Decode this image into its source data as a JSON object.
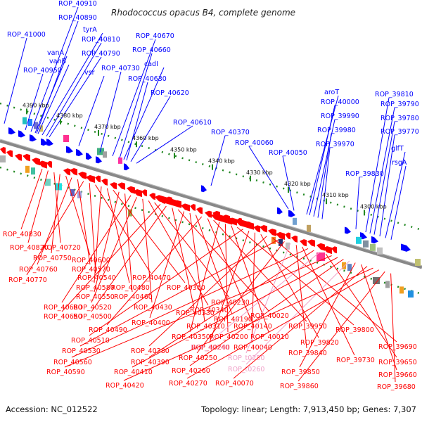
{
  "title": "Rhodococcus opacus B4, complete genome",
  "accession": "Accession: NC_012522",
  "summary": "Topology: linear; Length: 7,913,450 bp; Genes: 7,307",
  "colors": {
    "forward": "#0000ff",
    "reverse": "#ff0000",
    "reverse_light": "#f0a0c8",
    "backbone": "#888888",
    "ticks": "#228822"
  },
  "kbp_ticks": [
    "4390 kbp",
    "4380 kbp",
    "4370 kbp",
    "4360 kbp",
    "4350 kbp",
    "4340 kbp",
    "4330 kbp",
    "4320 kbp",
    "4310 kbp",
    "4300 kbp"
  ],
  "forward_labels": [
    "ROP_40910",
    "ROP_40890",
    "tyrA",
    "ROP_41000",
    "ROP_40810",
    "ROP_40670",
    "vanA",
    "ROP_40790",
    "ROP_40660",
    "vanB",
    "cadI",
    "ROP_40950",
    "ROP_40730",
    "vsr",
    "ROP_40630",
    "ROP_40620",
    "ROP_40610",
    "ROP_40370",
    "ROP_40060",
    "ROP_40050",
    "aroT",
    "ROP_40000",
    "ROP_39990",
    "ROP_39980",
    "ROP_39970",
    "ROP_39810",
    "ROP_39790",
    "ROP_39780",
    "ROP_39770",
    "glfT",
    "rsgA",
    "ROP_39830"
  ],
  "reverse_labels": [
    "ROP_40830",
    "ROP_40820",
    "ROP_40720",
    "ROP_40750",
    "ROP_40600",
    "ROP_40760",
    "ROP_40570",
    "ROP_40770",
    "ROP_40540",
    "ROP_40470",
    "ROP_40580",
    "ROP_40480",
    "ROP_40360",
    "ROP_40550",
    "ROP_40460",
    "ROP_40680",
    "ROP_40520",
    "ROP_40430",
    "ROP_40340",
    "ROP_40230",
    "ROP_40650",
    "ROP_40500",
    "ROP_40330",
    "ROP_40020",
    "ROP_40400",
    "ROP_40310",
    "ROP_40190",
    "ROP_40490",
    "ROP_40140",
    "ROP_39950",
    "ROP_40350",
    "ROP_40200",
    "ROP_40010",
    "ROP_39800",
    "ROP_40510",
    "ROP_40240",
    "ROP_40040",
    "ROP_39820",
    "ROP_40380",
    "ROP_39690",
    "ROP_40530",
    "ROP_40250",
    "ROP_t0250",
    "ROP_39840",
    "ROP_39730",
    "ROP_40560",
    "ROP_40390",
    "ROP_40240",
    "ROP_39650",
    "ROP_40590",
    "ROP_40410",
    "ROP_40260",
    "ROP_t0260",
    "ROP_39850",
    "ROP_39660",
    "ROP_40070",
    "ROP_40420",
    "ROP_40270",
    "ROP_39860",
    "ROP_39680"
  ],
  "light_reverse_labels": [
    "ROP_t0250",
    "ROP_t0260",
    "ROP_40240"
  ]
}
